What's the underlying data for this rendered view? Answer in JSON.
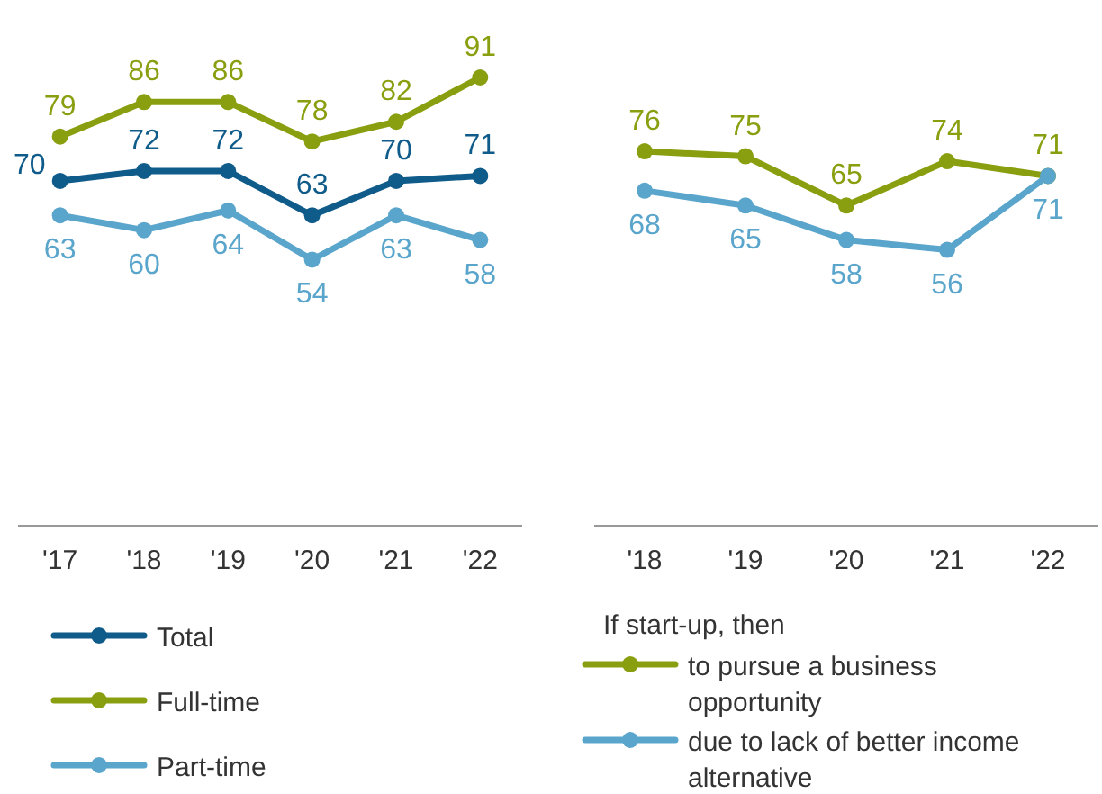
{
  "chart_data": [
    {
      "type": "line",
      "categories": [
        "'17",
        "'18",
        "'19",
        "'20",
        "'21",
        "'22"
      ],
      "data_labels": true,
      "marker": "circle",
      "legend": "bottom",
      "tick_labels": "x",
      "series": [
        {
          "name": "Total",
          "color": "#0f5b8a",
          "values": [
            70,
            72,
            72,
            63,
            70,
            71
          ]
        },
        {
          "name": "Full-time",
          "color": "#8a9f10",
          "values": [
            79,
            86,
            86,
            78,
            82,
            91
          ]
        },
        {
          "name": "Part-time",
          "color": "#5aa5cb",
          "values": [
            63,
            60,
            64,
            54,
            63,
            58
          ]
        }
      ]
    },
    {
      "type": "line",
      "categories": [
        "'18",
        "'19",
        "'20",
        "'21",
        "'22"
      ],
      "data_labels": true,
      "marker": "circle",
      "legend": "bottom",
      "tick_labels": "x",
      "legend_title": "If start-up, then",
      "series": [
        {
          "name": "to pursue a business opportunity",
          "color": "#8a9f10",
          "values": [
            76,
            75,
            65,
            74,
            71
          ]
        },
        {
          "name": "due to lack of better income alternative",
          "color": "#5aa5cb",
          "values": [
            68,
            65,
            58,
            56,
            71
          ]
        }
      ]
    }
  ]
}
